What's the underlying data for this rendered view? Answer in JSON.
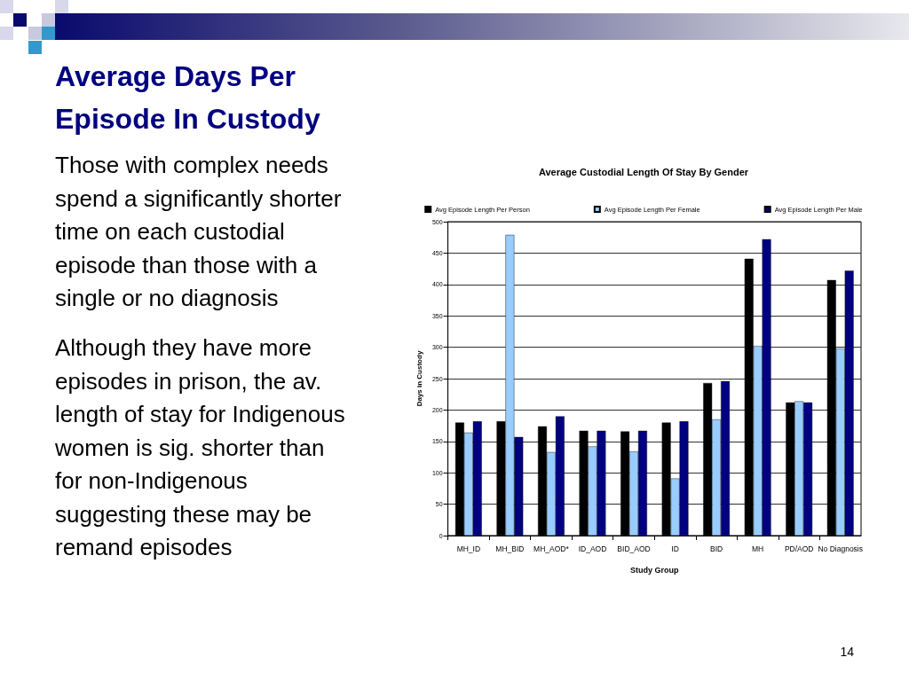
{
  "chart_data": {
    "type": "bar",
    "title": "Average Days Per Episode In Custody",
    "subtitle": "Average Custodial Length Of Stay By Gender",
    "annotations": [
      "Those with complex needs spend a significantly  shorter time on each custodial episode than those with a single or no diagnosis",
      "Although they have more episodes in prison, the av. length of stay for Indigenous women is sig. shorter than for non-Indigenous suggesting these may be remand episodes",
      "14"
    ],
    "xlabel": "Study Group",
    "ylabel": "Days in Custody",
    "categories": [
      "MH_ID",
      "MH_BID",
      "MH_AOD*",
      "ID_AOD",
      "BID_AOD",
      "ID",
      "BID",
      "MH",
      "PD/AOD",
      "No Diagnosis"
    ],
    "series": [
      {
        "name": "Avg Episode Length Per Person",
        "color": "#000000",
        "values": [
          180,
          182,
          174,
          167,
          166,
          180,
          243,
          441,
          212,
          407
        ]
      },
      {
        "name": "Avg Episode Length Per Female",
        "color": "#99ccff",
        "values": [
          164,
          479,
          133,
          142,
          134,
          91,
          185,
          302,
          214,
          298
        ]
      },
      {
        "name": "Avg Episode Length Per Male",
        "color": "#000080",
        "values": [
          182,
          157,
          190,
          167,
          167,
          182,
          246,
          472,
          212,
          422
        ]
      }
    ],
    "ylim": [
      0,
      500
    ],
    "yticks": [
      0,
      50,
      100,
      150,
      200,
      250,
      300,
      350,
      400,
      450,
      500
    ],
    "grid": "y",
    "legend": "top"
  }
}
